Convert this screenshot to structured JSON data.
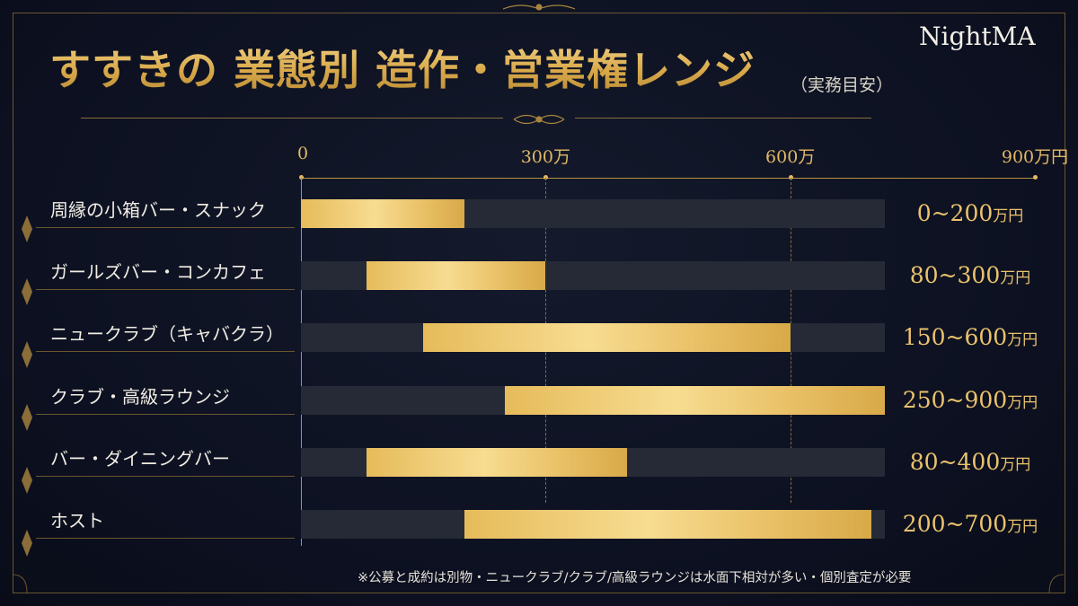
{
  "title": "すすきの 業態別 造作・営業権レンジ",
  "subtitle": "（実務目安）",
  "brand": "NightMA",
  "note": "※公募と成約は別物・ニュークラブ/クラブ/高級ラウンジは水面下相対が多い・個別査定が必要",
  "unit_suffix": "万円",
  "colors": {
    "background": "#0d1222",
    "bar_gold": "#e9c066",
    "track": "#262a36",
    "accent": "#e2b964"
  },
  "chart_data": {
    "type": "bar",
    "orientation": "horizontal-range",
    "title": "すすきの 業態別 造作・営業権レンジ",
    "xlim": [
      0,
      900
    ],
    "x_ticks": [
      {
        "value": 0,
        "label": "0"
      },
      {
        "value": 300,
        "label": "300万"
      },
      {
        "value": 600,
        "label": "600万"
      },
      {
        "value": 900,
        "label": "900万円"
      }
    ],
    "grid": "dashed vertical at 300 and 600",
    "categories": [
      "周縁の小箱バー・スナック",
      "ガールズバー・コンカフェ",
      "ニュークラブ（キャバクラ）",
      "クラブ・高級ラウンジ",
      "バー・ダイニングバー",
      "ホスト"
    ],
    "ranges": [
      {
        "low": 0,
        "high": 200,
        "label": "0~200"
      },
      {
        "low": 80,
        "high": 300,
        "label": "80~300"
      },
      {
        "low": 150,
        "high": 600,
        "label": "150~600"
      },
      {
        "low": 250,
        "high": 900,
        "label": "250~900"
      },
      {
        "low": 80,
        "high": 400,
        "label": "80~400"
      },
      {
        "low": 200,
        "high": 700,
        "label": "200~700"
      }
    ]
  }
}
